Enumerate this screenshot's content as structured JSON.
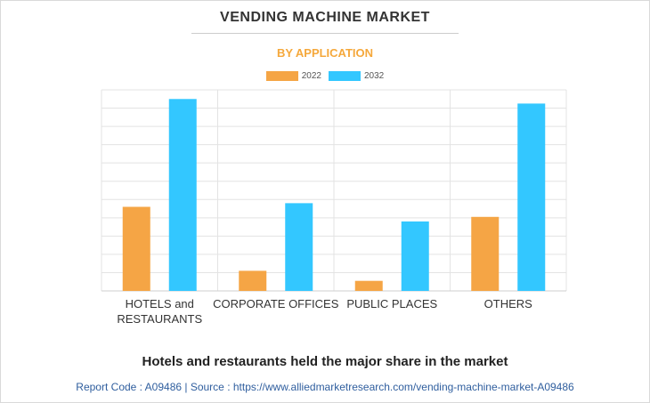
{
  "header": {
    "title": "VENDING MACHINE MARKET",
    "subtitle": "BY APPLICATION"
  },
  "legend": [
    {
      "label": "2022",
      "color": "#f5a545"
    },
    {
      "label": "2032",
      "color": "#33c7ff"
    }
  ],
  "chart_data": {
    "type": "bar",
    "categories": [
      [
        "HOTELS and",
        "RESTAURANTS"
      ],
      [
        "CORPORATE OFFICES"
      ],
      [
        "PUBLIC PLACES"
      ],
      [
        "OTHERS"
      ]
    ],
    "series": [
      {
        "name": "2022",
        "color": "#f5a545",
        "values": [
          4.6,
          1.1,
          0.55,
          4.05
        ]
      },
      {
        "name": "2032",
        "color": "#33c7ff",
        "values": [
          10.5,
          4.8,
          3.8,
          10.25
        ]
      }
    ],
    "ylim": [
      0,
      11
    ],
    "gridlines": 11,
    "grid": true,
    "y_tick_labels_visible": false,
    "legend_position": "top-center"
  },
  "note": "Hotels and restaurants held the major share in the market",
  "footer": "Report Code : A09486  |  Source : https://www.alliedmarketresearch.com/vending-machine-market-A09486"
}
